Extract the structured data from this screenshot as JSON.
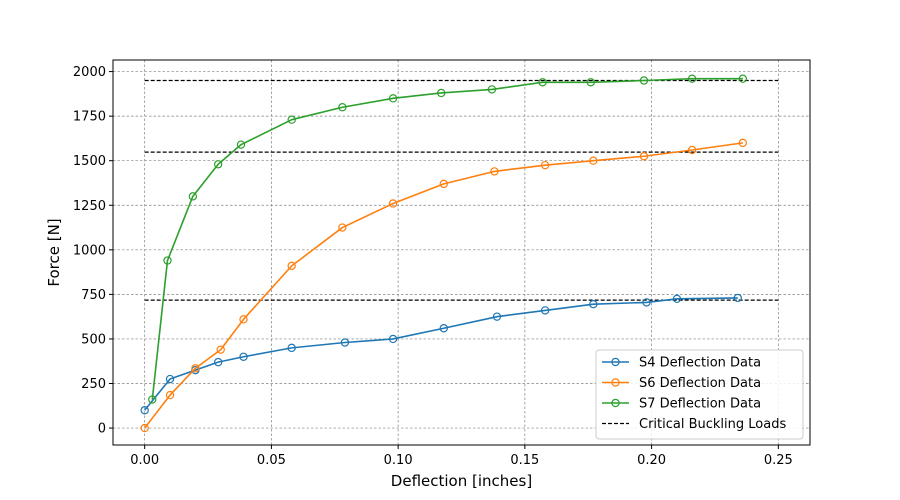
{
  "chart_data": {
    "type": "line",
    "title": "",
    "xlabel": "Deflection [inches]",
    "ylabel": "Force [N]",
    "xlim": [
      -0.0125,
      0.2625
    ],
    "ylim": [
      -95,
      2065
    ],
    "xticks": [
      0.0,
      0.05,
      0.1,
      0.15,
      0.2,
      0.25
    ],
    "xtick_labels": [
      "0.00",
      "0.05",
      "0.10",
      "0.15",
      "0.20",
      "0.25"
    ],
    "yticks": [
      0,
      250,
      500,
      750,
      1000,
      1250,
      1500,
      1750,
      2000
    ],
    "ytick_labels": [
      "0",
      "250",
      "500",
      "750",
      "1000",
      "1250",
      "1500",
      "1750",
      "2000"
    ],
    "grid": true,
    "legend_position": "lower-right",
    "series": [
      {
        "name": "S4 Deflection Data",
        "color": "#1f77b4",
        "marker": "open-circle",
        "x": [
          0.0,
          0.01,
          0.02,
          0.029,
          0.039,
          0.058,
          0.079,
          0.098,
          0.118,
          0.139,
          0.158,
          0.177,
          0.198,
          0.21,
          0.234
        ],
        "y": [
          100,
          275,
          325,
          370,
          400,
          450,
          480,
          500,
          560,
          625,
          660,
          695,
          705,
          725,
          730
        ]
      },
      {
        "name": "S6 Deflection Data",
        "color": "#ff7f0e",
        "marker": "open-circle",
        "x": [
          0.0,
          0.01,
          0.02,
          0.03,
          0.039,
          0.058,
          0.078,
          0.098,
          0.118,
          0.138,
          0.158,
          0.177,
          0.197,
          0.216,
          0.236
        ],
        "y": [
          0,
          185,
          335,
          440,
          610,
          910,
          1125,
          1260,
          1370,
          1440,
          1475,
          1500,
          1525,
          1560,
          1600
        ]
      },
      {
        "name": "S7 Deflection Data",
        "color": "#2ca02c",
        "marker": "open-circle",
        "x": [
          0.003,
          0.009,
          0.019,
          0.029,
          0.038,
          0.058,
          0.078,
          0.098,
          0.117,
          0.137,
          0.157,
          0.176,
          0.197,
          0.216,
          0.236
        ],
        "y": [
          160,
          940,
          1300,
          1480,
          1590,
          1730,
          1800,
          1850,
          1880,
          1900,
          1940,
          1940,
          1950,
          1960,
          1960
        ]
      },
      {
        "name": "Critical Buckling Loads",
        "color": "#000000",
        "style": "dashed",
        "lines": [
          {
            "x": [
              0.0,
              0.25
            ],
            "y": 718
          },
          {
            "x": [
              0.0,
              0.25
            ],
            "y": 1548
          },
          {
            "x": [
              0.0,
              0.25
            ],
            "y": 1950
          }
        ]
      }
    ]
  }
}
